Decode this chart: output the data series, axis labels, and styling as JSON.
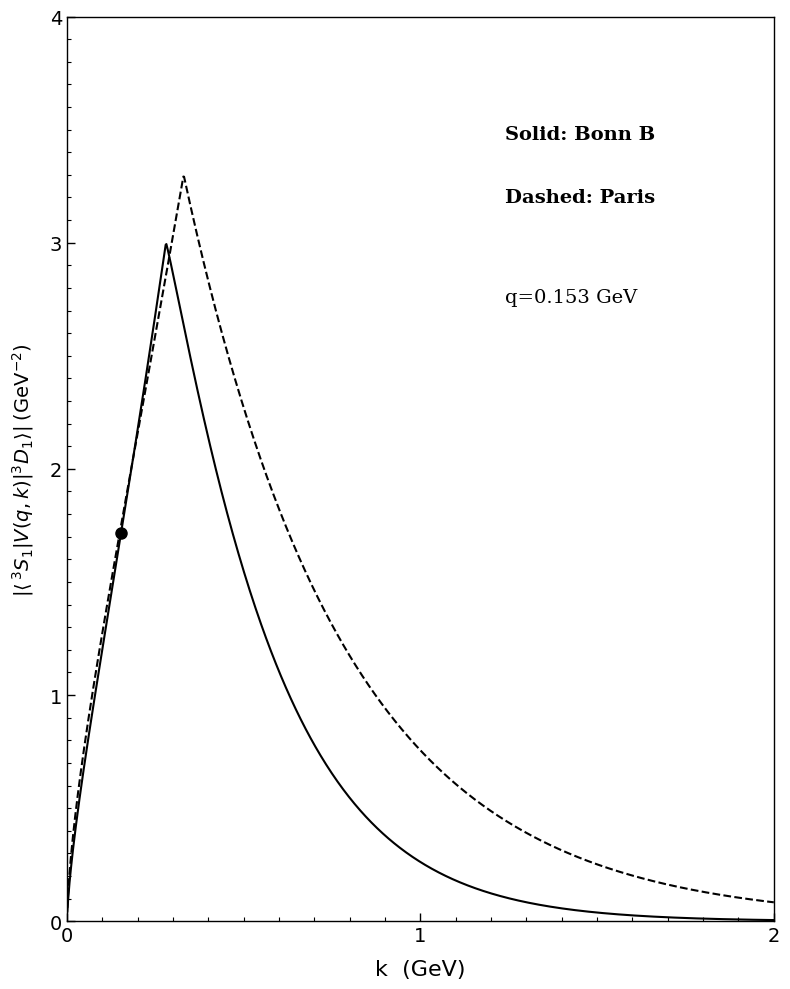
{
  "title": "",
  "xlabel": "k  (GeV)",
  "ylabel": "|<³S₁|V(q,k)|³D₁>|  (GeV⁻²)",
  "xlim": [
    0.0,
    2.0
  ],
  "ylim": [
    0.0,
    4.0
  ],
  "xticks": [
    0.0,
    1.0,
    2.0
  ],
  "yticks": [
    0.0,
    1.0,
    2.0,
    3.0,
    4.0
  ],
  "q_value": 0.153,
  "on_shell_x": 0.153,
  "legend_text_solid": "Solid: Bonn B",
  "legend_text_dashed": "Dashed: Paris",
  "annotation": "q=0.153 GeV",
  "background_color": "#ffffff",
  "line_color_solid": "#000000",
  "line_color_dashed": "#000000",
  "dot_color": "#000000",
  "figsize": [
    8.0,
    10.0
  ],
  "dpi": 100
}
